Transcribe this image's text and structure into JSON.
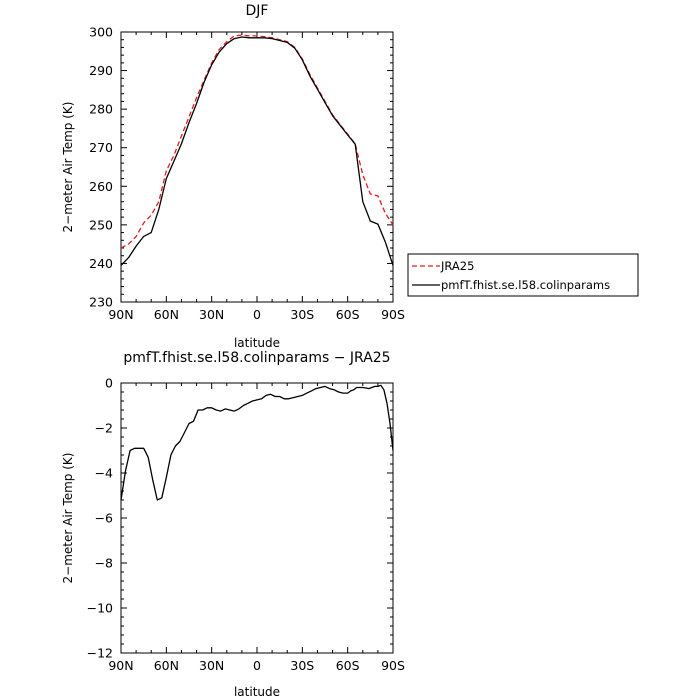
{
  "chart_data": [
    {
      "type": "line",
      "title": "DJF",
      "xlabel": "latitude",
      "ylabel": "2−meter Air Temp (K)",
      "xlim": [
        90,
        -90
      ],
      "ylim": [
        230,
        300
      ],
      "x_ticks": [
        90,
        60,
        30,
        0,
        -30,
        -60,
        -90
      ],
      "x_tick_labels": [
        "90N",
        "60N",
        "30N",
        "0",
        "30S",
        "60S",
        "90S"
      ],
      "y_ticks": [
        230,
        240,
        250,
        260,
        270,
        280,
        290,
        300
      ],
      "y_tick_labels": [
        "230",
        "240",
        "250",
        "260",
        "270",
        "280",
        "290",
        "300"
      ],
      "legend_position": "right-outside",
      "series": [
        {
          "name": "JRA25",
          "color": "#e41a1c",
          "dash": "dashed",
          "x": [
            90,
            85,
            80,
            75,
            70,
            65,
            60,
            55,
            50,
            45,
            40,
            35,
            30,
            25,
            20,
            15,
            10,
            5,
            0,
            -5,
            -10,
            -15,
            -20,
            -25,
            -30,
            -35,
            -40,
            -45,
            -50,
            -55,
            -60,
            -65,
            -70,
            -75,
            -80,
            -85,
            -90
          ],
          "values": [
            244,
            245,
            247,
            250.5,
            252.5,
            256,
            264,
            268,
            273,
            278,
            283,
            287.5,
            292,
            295.5,
            297.5,
            299,
            299.2,
            299,
            299,
            298.8,
            298.5,
            298,
            297.5,
            296,
            293,
            289,
            285.5,
            282,
            278.5,
            276,
            273.5,
            271,
            263,
            258,
            257.5,
            253,
            250
          ]
        },
        {
          "name": "pmfT.fhist.se.l58.colinparams",
          "color": "#000000",
          "dash": "solid",
          "x": [
            90,
            85,
            80,
            75,
            70,
            65,
            60,
            55,
            50,
            45,
            40,
            35,
            30,
            25,
            20,
            15,
            10,
            5,
            0,
            -5,
            -10,
            -15,
            -20,
            -25,
            -30,
            -35,
            -40,
            -45,
            -50,
            -55,
            -60,
            -65,
            -70,
            -75,
            -80,
            -85,
            -90
          ],
          "values": [
            239.5,
            241.5,
            244.5,
            247,
            248,
            254,
            262,
            266.5,
            271,
            276.5,
            281.5,
            287,
            291.5,
            294.8,
            297,
            298.3,
            298.7,
            298.5,
            298.5,
            298.5,
            298.3,
            297.8,
            297.3,
            295.8,
            292.8,
            288.6,
            285.2,
            281.7,
            278.3,
            275.8,
            273.3,
            270.9,
            256,
            251,
            250.2,
            245.5,
            239.5
          ]
        }
      ]
    },
    {
      "type": "line",
      "title": "pmfT.fhist.se.l58.colinparams − JRA25",
      "xlabel": "latitude",
      "ylabel": "2−meter Air Temp (K)",
      "xlim": [
        90,
        -90
      ],
      "ylim": [
        -12,
        0
      ],
      "x_ticks": [
        90,
        60,
        30,
        0,
        -30,
        -60,
        -90
      ],
      "x_tick_labels": [
        "90N",
        "60N",
        "30N",
        "0",
        "30S",
        "60S",
        "90S"
      ],
      "y_ticks": [
        -12,
        -10,
        -8,
        -6,
        -4,
        -2,
        0
      ],
      "y_tick_labels": [
        "−12",
        "−10",
        "−8",
        "−6",
        "−4",
        "−2",
        "0"
      ],
      "series": [
        {
          "color": "#000000",
          "x": [
            90,
            87,
            84,
            81,
            78,
            75,
            72,
            69,
            66,
            63,
            60,
            57,
            54,
            51,
            48,
            45,
            42,
            39,
            36,
            33,
            30,
            27,
            24,
            21,
            18,
            15,
            12,
            9,
            6,
            3,
            0,
            -3,
            -6,
            -9,
            -12,
            -15,
            -18,
            -21,
            -24,
            -27,
            -30,
            -33,
            -36,
            -39,
            -42,
            -45,
            -48,
            -51,
            -54,
            -57,
            -60,
            -62,
            -64,
            -66,
            -68,
            -70,
            -72,
            -74,
            -76,
            -78,
            -80,
            -82,
            -84,
            -86,
            -88,
            -90
          ],
          "values": [
            -5.2,
            -3.9,
            -3.0,
            -2.9,
            -2.9,
            -2.9,
            -3.3,
            -4.3,
            -5.2,
            -5.1,
            -4.2,
            -3.2,
            -2.8,
            -2.6,
            -2.2,
            -1.8,
            -1.7,
            -1.2,
            -1.2,
            -1.1,
            -1.1,
            -1.2,
            -1.25,
            -1.15,
            -1.2,
            -1.25,
            -1.15,
            -1.0,
            -0.9,
            -0.8,
            -0.75,
            -0.7,
            -0.55,
            -0.5,
            -0.6,
            -0.6,
            -0.7,
            -0.7,
            -0.65,
            -0.6,
            -0.55,
            -0.45,
            -0.35,
            -0.25,
            -0.2,
            -0.15,
            -0.25,
            -0.3,
            -0.4,
            -0.45,
            -0.45,
            -0.35,
            -0.3,
            -0.2,
            -0.2,
            -0.2,
            -0.22,
            -0.25,
            -0.2,
            -0.15,
            -0.15,
            -0.1,
            -0.3,
            -0.9,
            -1.8,
            -3.0
          ]
        }
      ]
    }
  ]
}
